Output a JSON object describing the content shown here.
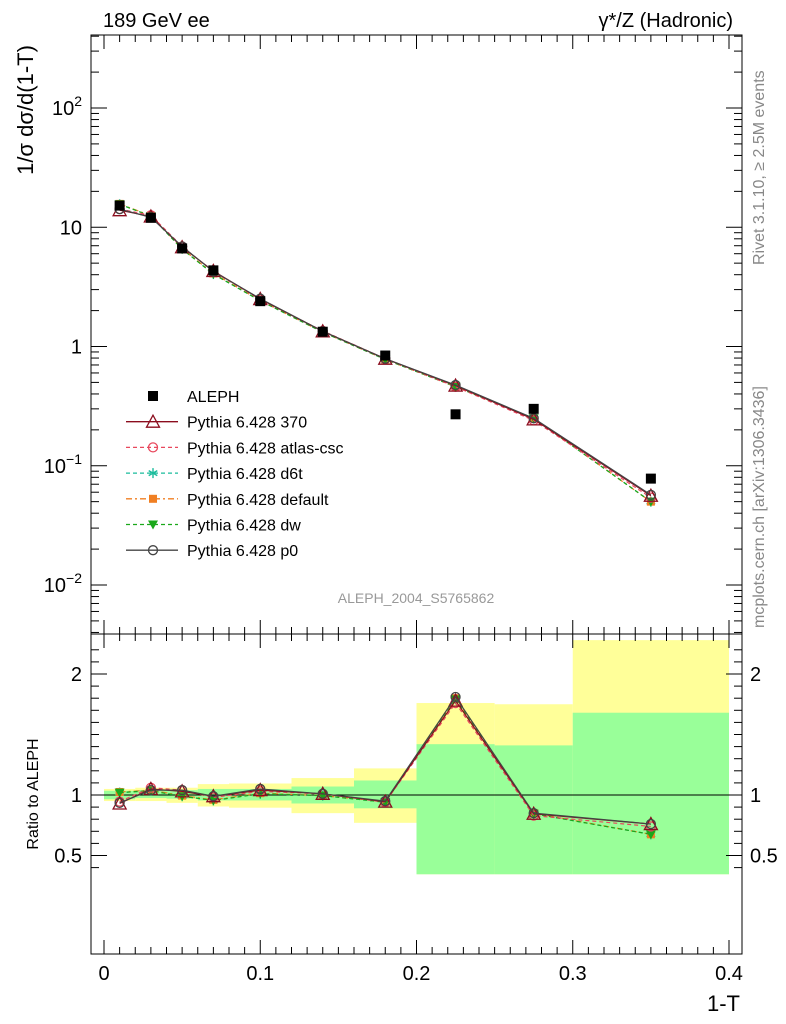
{
  "header": {
    "left": "189 GeV ee",
    "right": "γ*/Z (Hadronic)"
  },
  "side_text": {
    "rivet": "Rivet 3.1.10, ≥ 2.5M events",
    "mcplots": "mcplots.cern.ch [arXiv:1306.3436]"
  },
  "watermark": "ALEPH_2004_S5765862",
  "chart_data": [
    {
      "type": "line",
      "panel": "main",
      "ylabel": "1/σ dσ/d(1-T)",
      "yscale": "log",
      "ylim": [
        0.004,
        400
      ],
      "xlim": [
        -0.02,
        0.4
      ],
      "yticks": [
        {
          "value": 0.01,
          "base": "10",
          "exp": "−2"
        },
        {
          "value": 0.1,
          "base": "10",
          "exp": "−1"
        },
        {
          "value": 1,
          "base": "1",
          "exp": ""
        },
        {
          "value": 10,
          "base": "10",
          "exp": ""
        },
        {
          "value": 100,
          "base": "10",
          "exp": "2"
        }
      ],
      "x": [
        0.01,
        0.03,
        0.05,
        0.07,
        0.1,
        0.14,
        0.18,
        0.225,
        0.275,
        0.35
      ],
      "data": {
        "name": "ALEPH",
        "x": [
          0.01,
          0.03,
          0.05,
          0.07,
          0.1,
          0.14,
          0.18,
          0.225,
          0.275,
          0.35
        ],
        "values": [
          15.2,
          12.0,
          6.65,
          4.35,
          2.4,
          1.33,
          0.84,
          0.27,
          0.3,
          0.078
        ]
      },
      "series": [
        {
          "name": "Pythia 6.428 370",
          "color": "#8b0d1e",
          "dash": "",
          "marker": "triangle-open",
          "values": [
            13.9,
            12.3,
            6.8,
            4.3,
            2.5,
            1.34,
            0.79,
            0.47,
            0.245,
            0.056
          ]
        },
        {
          "name": "Pythia 6.428 atlas-csc",
          "color": "#e8485d",
          "dash": "4,3",
          "marker": "circle-open",
          "values": [
            14.2,
            12.6,
            6.9,
            4.25,
            2.48,
            1.35,
            0.79,
            0.46,
            0.24,
            0.054
          ]
        },
        {
          "name": "Pythia 6.428 d6t",
          "color": "#1abc9c",
          "dash": "4,3",
          "marker": "star",
          "values": [
            15.6,
            12.4,
            6.6,
            4.05,
            2.42,
            1.32,
            0.78,
            0.46,
            0.25,
            0.05
          ]
        },
        {
          "name": "Pythia 6.428 default",
          "color": "#f07f22",
          "dash": "6,3,2,3",
          "marker": "square",
          "values": [
            15.7,
            12.5,
            6.6,
            4.1,
            2.43,
            1.32,
            0.78,
            0.46,
            0.25,
            0.05
          ]
        },
        {
          "name": "Pythia 6.428 dw",
          "color": "#1aa81a",
          "dash": "4,3",
          "marker": "triangle-down",
          "values": [
            15.6,
            12.4,
            6.55,
            4.05,
            2.42,
            1.32,
            0.78,
            0.46,
            0.25,
            0.05
          ]
        },
        {
          "name": "Pythia 6.428 p0",
          "color": "#444444",
          "dash": "",
          "marker": "circle-open",
          "values": [
            14.2,
            12.1,
            6.9,
            4.25,
            2.52,
            1.34,
            0.79,
            0.475,
            0.25,
            0.057
          ]
        }
      ]
    },
    {
      "type": "line",
      "panel": "ratio",
      "ylabel": "Ratio to ALEPH",
      "xlabel": "1-T",
      "xlim": [
        -0.02,
        0.4
      ],
      "ylim": [
        0.35,
        2.3
      ],
      "xticks": [
        {
          "value": 0,
          "label": "0"
        },
        {
          "value": 0.1,
          "label": "0.1"
        },
        {
          "value": 0.2,
          "label": "0.2"
        },
        {
          "value": 0.3,
          "label": "0.3"
        },
        {
          "value": 0.4,
          "label": "0.4"
        }
      ],
      "yticks": [
        {
          "value": 0.5,
          "label": "0.5"
        },
        {
          "value": 1,
          "label": "1"
        },
        {
          "value": 2,
          "label": "2"
        }
      ],
      "bands": [
        {
          "x0": 0.0,
          "x1": 0.02,
          "g": [
            0.965,
            1.035
          ],
          "y": [
            0.95,
            1.05
          ]
        },
        {
          "x0": 0.02,
          "x1": 0.04,
          "g": [
            0.975,
            1.04
          ],
          "y": [
            0.95,
            1.06
          ]
        },
        {
          "x0": 0.04,
          "x1": 0.06,
          "g": [
            0.97,
            1.04
          ],
          "y": [
            0.935,
            1.06
          ]
        },
        {
          "x0": 0.06,
          "x1": 0.08,
          "g": [
            0.955,
            1.05
          ],
          "y": [
            0.905,
            1.09
          ]
        },
        {
          "x0": 0.08,
          "x1": 0.12,
          "g": [
            0.955,
            1.05
          ],
          "y": [
            0.895,
            1.095
          ]
        },
        {
          "x0": 0.12,
          "x1": 0.16,
          "g": [
            0.93,
            1.07
          ],
          "y": [
            0.85,
            1.14
          ]
        },
        {
          "x0": 0.16,
          "x1": 0.2,
          "g": [
            0.89,
            1.12
          ],
          "y": [
            0.77,
            1.22
          ]
        },
        {
          "x0": 0.2,
          "x1": 0.25,
          "g": [
            0.345,
            1.42
          ],
          "y": [
            0.345,
            1.76
          ]
        },
        {
          "x0": 0.25,
          "x1": 0.3,
          "g": [
            0.345,
            1.41
          ],
          "y": [
            0.345,
            1.75
          ]
        },
        {
          "x0": 0.3,
          "x1": 0.4,
          "g": [
            0.345,
            1.68
          ],
          "y": [
            0.345,
            2.28
          ]
        }
      ],
      "series": [
        {
          "name": "Pythia 6.428 370",
          "values": [
            0.93,
            1.05,
            1.03,
            0.99,
            1.04,
            1.01,
            0.945,
            1.78,
            0.845,
            0.76
          ]
        },
        {
          "name": "Pythia 6.428 atlas-csc",
          "values": [
            0.945,
            1.06,
            1.04,
            0.98,
            1.03,
            1.01,
            0.94,
            1.76,
            0.83,
            0.74
          ]
        },
        {
          "name": "Pythia 6.428 d6t",
          "values": [
            1.02,
            1.035,
            0.99,
            0.955,
            1.01,
            0.995,
            0.94,
            1.79,
            0.845,
            0.675
          ]
        },
        {
          "name": "Pythia 6.428 default",
          "values": [
            1.025,
            1.04,
            0.995,
            0.96,
            1.015,
            0.995,
            0.945,
            1.8,
            0.85,
            0.675
          ]
        },
        {
          "name": "Pythia 6.428 dw",
          "values": [
            1.02,
            1.035,
            0.99,
            0.955,
            1.01,
            0.995,
            0.94,
            1.79,
            0.845,
            0.675
          ]
        },
        {
          "name": "Pythia 6.428 p0",
          "values": [
            0.935,
            1.04,
            1.04,
            0.99,
            1.05,
            1.01,
            0.95,
            1.81,
            0.85,
            0.76
          ]
        }
      ]
    }
  ]
}
